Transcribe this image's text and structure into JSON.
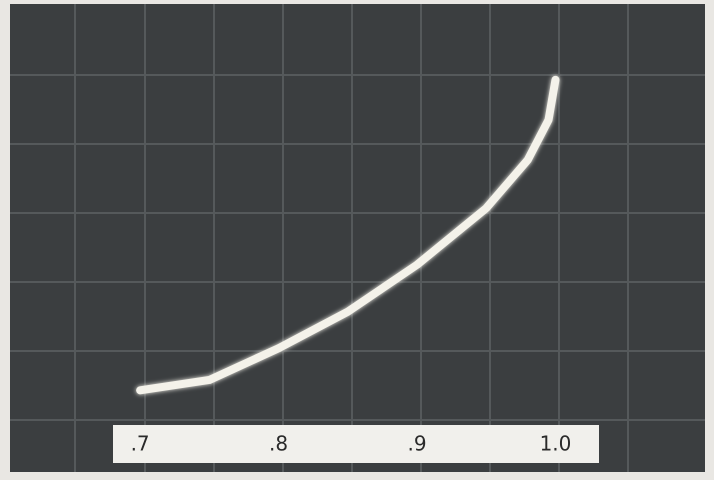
{
  "chart_data": {
    "type": "line",
    "x": [
      0.7,
      0.75,
      0.8,
      0.85,
      0.9,
      0.95,
      0.98,
      0.995,
      1.0
    ],
    "series": [
      {
        "color": "#f4f2ea",
        "values": [
          0.43,
          0.58,
          1.04,
          1.57,
          2.25,
          3.07,
          3.77,
          4.35,
          4.93
        ]
      }
    ],
    "xlim": [
      0.606,
      1.108
    ],
    "ylim": [
      0,
      6
    ],
    "xticks": [
      {
        "value": 0.7,
        "label": ".7"
      },
      {
        "value": 0.8,
        "label": ".8"
      },
      {
        "value": 0.9,
        "label": ".9"
      },
      {
        "value": 1.0,
        "label": "1.0"
      }
    ]
  }
}
